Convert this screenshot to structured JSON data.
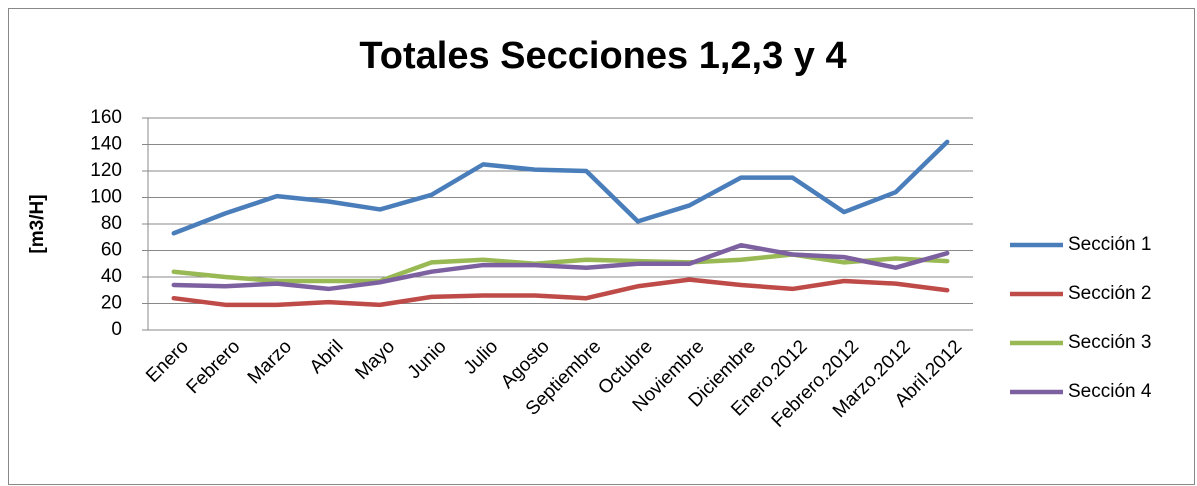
{
  "chart_data": {
    "type": "line",
    "title": "Totales Secciones 1,2,3 y 4",
    "y_label": "[m3/H]",
    "categories": [
      "Enero",
      "Febrero",
      "Marzo",
      "Abril",
      "Mayo",
      "Junio",
      "Julio",
      "Agosto",
      "Septiembre",
      "Octubre",
      "Noviembre",
      "Diciembre",
      "Enero.2012",
      "Febrero.2012",
      "Marzo.2012",
      "Abril.2012"
    ],
    "series": [
      {
        "name": "Sección 1",
        "color": "#4a7ebb",
        "values": [
          73,
          88,
          101,
          97,
          91,
          102,
          125,
          121,
          120,
          82,
          94,
          115,
          115,
          89,
          104,
          142
        ]
      },
      {
        "name": "Sección 2",
        "color": "#be4b48",
        "values": [
          24,
          19,
          19,
          21,
          19,
          25,
          26,
          26,
          24,
          33,
          38,
          34,
          31,
          37,
          35,
          30
        ]
      },
      {
        "name": "Sección 3",
        "color": "#98b954",
        "values": [
          44,
          40,
          37,
          37,
          37,
          51,
          53,
          50,
          53,
          52,
          51,
          53,
          57,
          51,
          54,
          52
        ]
      },
      {
        "name": "Sección 4",
        "color": "#7d60a0",
        "values": [
          34,
          33,
          35,
          31,
          36,
          44,
          49,
          49,
          47,
          50,
          50,
          64,
          57,
          55,
          47,
          58
        ]
      }
    ],
    "ylim": [
      0,
      160
    ],
    "yticks": [
      0,
      20,
      40,
      60,
      80,
      100,
      120,
      140,
      160
    ],
    "grid": true,
    "legend": "right"
  }
}
